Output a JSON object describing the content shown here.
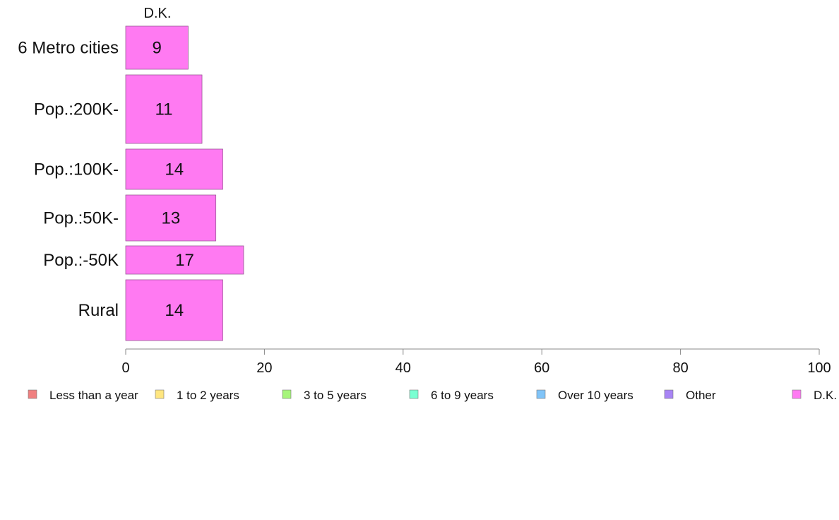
{
  "chart_data": {
    "type": "bar",
    "orientation": "horizontal",
    "stacked": true,
    "categories": [
      "6 Metro cities",
      "Pop.:200K-",
      "Pop.:100K-",
      "Pop.:50K-",
      "Pop.:-50K",
      "Rural"
    ],
    "series": [
      {
        "name": "Less than a year",
        "color": "#f08080",
        "values": [
          null,
          null,
          null,
          null,
          null,
          null
        ]
      },
      {
        "name": "1 to 2 years",
        "color": "#ffe680",
        "values": [
          null,
          null,
          null,
          null,
          null,
          null
        ]
      },
      {
        "name": "3 to 5 years",
        "color": "#a6f57a",
        "values": [
          null,
          null,
          null,
          null,
          null,
          null
        ]
      },
      {
        "name": "6 to 9 years",
        "color": "#7affd2",
        "values": [
          null,
          null,
          null,
          null,
          null,
          null
        ]
      },
      {
        "name": "Over 10 years",
        "color": "#80c4f8",
        "values": [
          null,
          null,
          null,
          null,
          null,
          null
        ]
      },
      {
        "name": "Other",
        "color": "#a884f5",
        "values": [
          null,
          null,
          null,
          null,
          null,
          null
        ]
      },
      {
        "name": "D.K.",
        "color": "#ff7af2",
        "values": [
          9,
          11,
          14,
          13,
          17,
          14
        ]
      }
    ],
    "top_label": "D.K.",
    "xlim": [
      0,
      100
    ],
    "x_ticks": [
      "0",
      "20",
      "40",
      "60",
      "80",
      "100"
    ],
    "grid": false,
    "legend_position": "bottom"
  }
}
